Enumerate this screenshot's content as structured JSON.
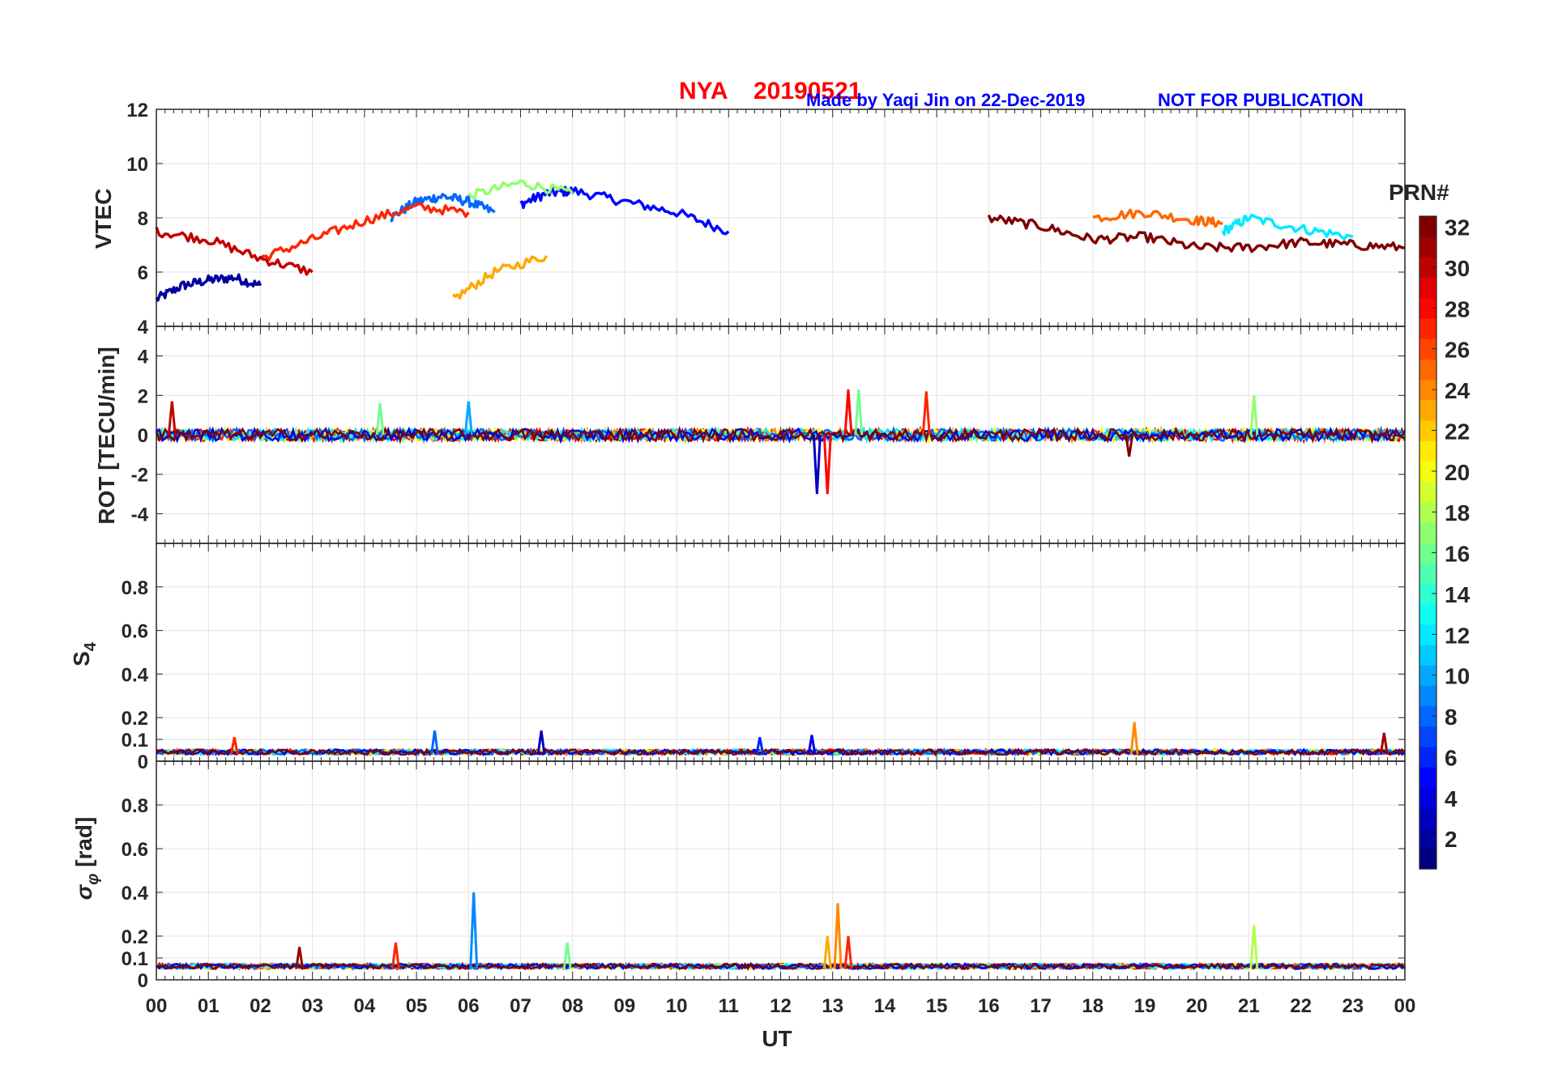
{
  "header": {
    "station": "NYA",
    "date": "20190521",
    "credit": "Made by Yaqi Jin on 22-Dec-2019",
    "notice": "NOT FOR PUBLICATION",
    "title_color": "#ff0000",
    "credit_color": "#0000ff"
  },
  "colorbar": {
    "title": "PRN#",
    "range": [
      1,
      32
    ],
    "ticks": [
      "2",
      "4",
      "6",
      "8",
      "10",
      "12",
      "14",
      "16",
      "18",
      "20",
      "22",
      "24",
      "26",
      "28",
      "30",
      "32"
    ],
    "colormap": "jet"
  },
  "chart_data": [
    {
      "type": "line",
      "name": "vtec-panel",
      "ylabel": "VTEC",
      "ylim": [
        4,
        12
      ],
      "yticks": [
        "4",
        "6",
        "8",
        "10",
        "12"
      ],
      "x_unit": "hours UT",
      "xlim": [
        0,
        24
      ],
      "series": [
        {
          "name": "PRN 2",
          "prn": 2,
          "x": [
            0,
            0.5,
            1,
            1.5,
            2
          ],
          "y": [
            5.0,
            5.5,
            5.7,
            5.8,
            5.5
          ]
        },
        {
          "name": "PRN 5",
          "prn": 5,
          "x": [
            7,
            7.5,
            8,
            9,
            10,
            11
          ],
          "y": [
            8.5,
            8.9,
            9.0,
            8.6,
            8.2,
            7.5
          ]
        },
        {
          "name": "PRN 8",
          "prn": 8,
          "x": [
            4.5,
            5,
            5.5,
            6,
            6.5
          ],
          "y": [
            8.0,
            8.6,
            8.8,
            8.6,
            8.2
          ]
        },
        {
          "name": "PRN 12",
          "prn": 12,
          "x": [
            20.5,
            21,
            22,
            23
          ],
          "y": [
            7.5,
            8.0,
            7.6,
            7.3
          ]
        },
        {
          "name": "PRN 17",
          "prn": 17,
          "x": [
            6,
            7,
            8
          ],
          "y": [
            8.8,
            9.3,
            8.9
          ]
        },
        {
          "name": "PRN 23",
          "prn": 23,
          "x": [
            5.7,
            6.5,
            7.5
          ],
          "y": [
            5.0,
            6.0,
            6.6
          ]
        },
        {
          "name": "PRN 25",
          "prn": 25,
          "x": [
            18,
            19,
            20,
            20.5
          ],
          "y": [
            8.0,
            8.2,
            7.9,
            7.8
          ]
        },
        {
          "name": "PRN 27",
          "prn": 27,
          "x": [
            2,
            3,
            4,
            5,
            6
          ],
          "y": [
            6.5,
            7.2,
            7.9,
            8.4,
            8.2
          ]
        },
        {
          "name": "PRN 30",
          "prn": 30,
          "x": [
            0,
            1,
            2,
            3
          ],
          "y": [
            7.5,
            7.2,
            6.5,
            6.0
          ]
        },
        {
          "name": "PRN 32",
          "prn": 32,
          "x": [
            16,
            17,
            18,
            19,
            20,
            21,
            22,
            23,
            24
          ],
          "y": [
            8.0,
            7.7,
            7.2,
            7.3,
            6.9,
            6.9,
            7.1,
            7.0,
            6.9
          ]
        }
      ]
    },
    {
      "type": "line",
      "name": "rot-panel",
      "ylabel": "ROT [TECU/min]",
      "ylim": [
        -5.5,
        5.5
      ],
      "yticks": [
        "-4",
        "-2",
        "0",
        "2",
        "4"
      ],
      "xlim": [
        0,
        24
      ],
      "noise_amplitude": 0.3,
      "spikes": [
        {
          "x": 0.3,
          "y": 1.7,
          "prn": 30
        },
        {
          "x": 4.3,
          "y": 1.6,
          "prn": 16
        },
        {
          "x": 6.0,
          "y": 1.7,
          "prn": 10
        },
        {
          "x": 12.7,
          "y": -3.0,
          "prn": 3
        },
        {
          "x": 12.9,
          "y": -3.0,
          "prn": 28
        },
        {
          "x": 13.3,
          "y": 2.3,
          "prn": 28
        },
        {
          "x": 13.5,
          "y": 2.3,
          "prn": 16
        },
        {
          "x": 14.8,
          "y": 2.2,
          "prn": 27
        },
        {
          "x": 18.7,
          "y": -1.1,
          "prn": 32
        },
        {
          "x": 21.1,
          "y": 2.0,
          "prn": 17
        }
      ]
    },
    {
      "type": "line",
      "name": "s4-panel",
      "ylabel": "S4",
      "ylim": [
        0,
        1
      ],
      "yticks": [
        "0",
        "0.1",
        "0.2",
        "0.4",
        "0.6",
        "0.8"
      ],
      "xlim": [
        0,
        24
      ],
      "baseline": 0.03,
      "spikes": [
        {
          "x": 1.5,
          "y": 0.11,
          "prn": 27
        },
        {
          "x": 5.35,
          "y": 0.14,
          "prn": 8
        },
        {
          "x": 7.4,
          "y": 0.14,
          "prn": 3
        },
        {
          "x": 11.6,
          "y": 0.11,
          "prn": 6
        },
        {
          "x": 12.6,
          "y": 0.12,
          "prn": 4
        },
        {
          "x": 18.8,
          "y": 0.18,
          "prn": 24
        },
        {
          "x": 23.6,
          "y": 0.13,
          "prn": 31
        }
      ]
    },
    {
      "type": "line",
      "name": "sigma-phi-panel",
      "ylabel": "σφ [rad]",
      "ylim": [
        0,
        1
      ],
      "yticks": [
        "0",
        "0.1",
        "0.2",
        "0.4",
        "0.6",
        "0.8"
      ],
      "xlim": [
        0,
        24
      ],
      "baseline": 0.05,
      "spikes": [
        {
          "x": 2.75,
          "y": 0.15,
          "prn": 31
        },
        {
          "x": 4.6,
          "y": 0.17,
          "prn": 27
        },
        {
          "x": 6.1,
          "y": 0.4,
          "prn": 9
        },
        {
          "x": 7.9,
          "y": 0.17,
          "prn": 16
        },
        {
          "x": 12.9,
          "y": 0.2,
          "prn": 23
        },
        {
          "x": 13.1,
          "y": 0.35,
          "prn": 24
        },
        {
          "x": 13.3,
          "y": 0.2,
          "prn": 27
        },
        {
          "x": 21.1,
          "y": 0.25,
          "prn": 18
        }
      ]
    }
  ],
  "x_axis": {
    "label": "UT",
    "ticks": [
      "00",
      "01",
      "02",
      "03",
      "04",
      "05",
      "06",
      "07",
      "08",
      "09",
      "10",
      "11",
      "12",
      "13",
      "14",
      "15",
      "16",
      "17",
      "18",
      "19",
      "20",
      "21",
      "22",
      "23",
      "00"
    ]
  }
}
